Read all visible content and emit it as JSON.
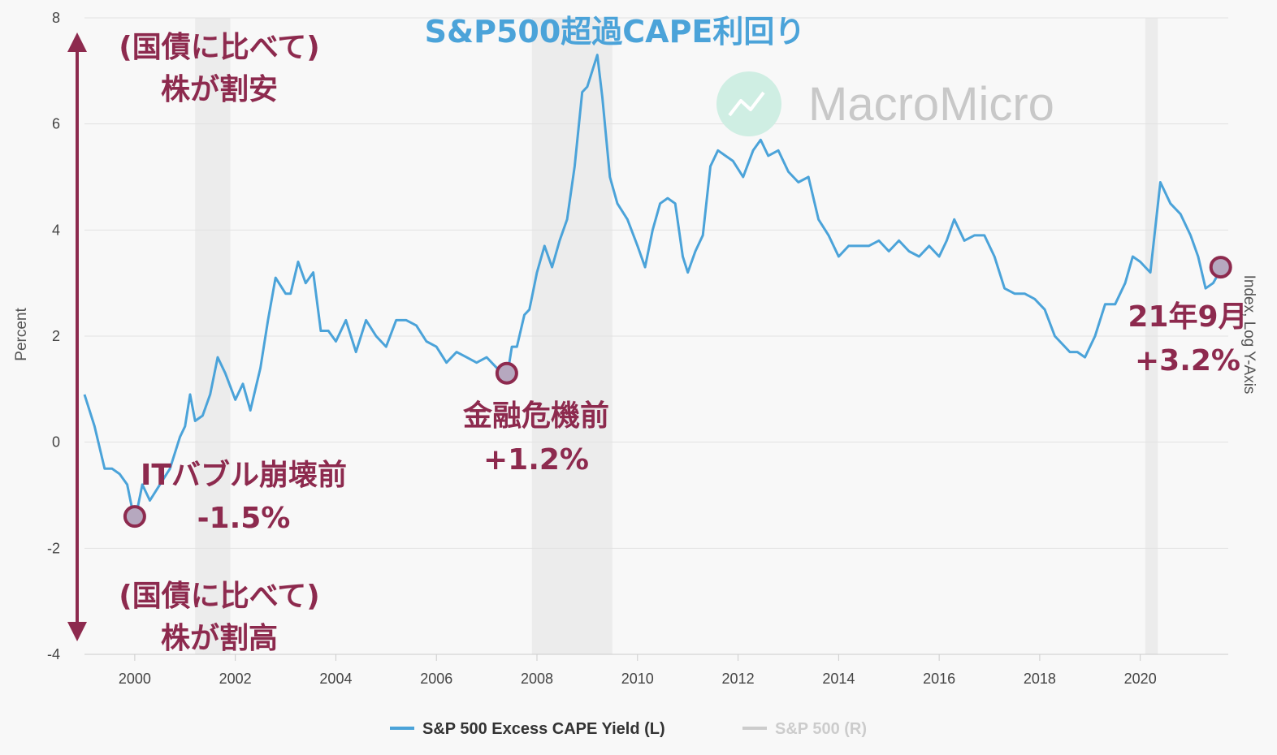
{
  "chart_data": {
    "type": "line",
    "title": "S&P500超過CAPE利回り",
    "ylabel": "Percent",
    "ylabel_right": "Index, Log Y-Axis",
    "ylim": [
      -4,
      8
    ],
    "xlim": [
      1999.0,
      2021.75
    ],
    "y_ticks": [
      8,
      6,
      4,
      2,
      0,
      -2,
      -4
    ],
    "x_ticks": [
      2000,
      2002,
      2004,
      2006,
      2008,
      2010,
      2012,
      2014,
      2016,
      2018,
      2020
    ],
    "grid": true,
    "recession_bands": [
      [
        2001.2,
        2001.9
      ],
      [
        2007.9,
        2009.5
      ],
      [
        2020.1,
        2020.35
      ]
    ],
    "series": [
      {
        "name": "S&P 500 Excess CAPE Yield (L)",
        "color": "#4ba3d9",
        "visible": true,
        "x": [
          1999.0,
          1999.2,
          1999.4,
          1999.55,
          1999.7,
          1999.85,
          2000.0,
          2000.15,
          2000.3,
          2000.5,
          2000.7,
          2000.9,
          2001.0,
          2001.1,
          2001.2,
          2001.35,
          2001.5,
          2001.65,
          2001.8,
          2002.0,
          2002.15,
          2002.3,
          2002.5,
          2002.65,
          2002.8,
          2003.0,
          2003.1,
          2003.25,
          2003.4,
          2003.55,
          2003.7,
          2003.85,
          2004.0,
          2004.2,
          2004.4,
          2004.6,
          2004.8,
          2005.0,
          2005.2,
          2005.4,
          2005.6,
          2005.8,
          2006.0,
          2006.2,
          2006.4,
          2006.6,
          2006.8,
          2007.0,
          2007.2,
          2007.4,
          2007.5,
          2007.6,
          2007.75,
          2007.85,
          2008.0,
          2008.15,
          2008.3,
          2008.45,
          2008.6,
          2008.75,
          2008.9,
          2009.0,
          2009.1,
          2009.2,
          2009.3,
          2009.45,
          2009.6,
          2009.8,
          2010.0,
          2010.15,
          2010.3,
          2010.45,
          2010.6,
          2010.75,
          2010.9,
          2011.0,
          2011.15,
          2011.3,
          2011.45,
          2011.6,
          2011.75,
          2011.9,
          2012.1,
          2012.3,
          2012.45,
          2012.6,
          2012.8,
          2013.0,
          2013.2,
          2013.4,
          2013.6,
          2013.8,
          2014.0,
          2014.2,
          2014.4,
          2014.6,
          2014.8,
          2015.0,
          2015.2,
          2015.4,
          2015.6,
          2015.8,
          2016.0,
          2016.15,
          2016.3,
          2016.5,
          2016.7,
          2016.9,
          2017.1,
          2017.3,
          2017.5,
          2017.7,
          2017.9,
          2018.1,
          2018.3,
          2018.5,
          2018.6,
          2018.75,
          2018.9,
          2019.1,
          2019.3,
          2019.5,
          2019.7,
          2019.85,
          2020.0,
          2020.1,
          2020.2,
          2020.4,
          2020.6,
          2020.8,
          2021.0,
          2021.15,
          2021.3,
          2021.45,
          2021.6
        ],
        "y": [
          0.9,
          0.3,
          -0.5,
          -0.5,
          -0.6,
          -0.8,
          -1.5,
          -0.8,
          -1.1,
          -0.8,
          -0.5,
          0.1,
          0.3,
          0.9,
          0.4,
          0.5,
          0.9,
          1.6,
          1.3,
          0.8,
          1.1,
          0.6,
          1.4,
          2.3,
          3.1,
          2.8,
          2.8,
          3.4,
          3.0,
          3.2,
          2.1,
          2.1,
          1.9,
          2.3,
          1.7,
          2.3,
          2.0,
          1.8,
          2.3,
          2.3,
          2.2,
          1.9,
          1.8,
          1.5,
          1.7,
          1.6,
          1.5,
          1.6,
          1.4,
          1.2,
          1.8,
          1.8,
          2.4,
          2.5,
          3.2,
          3.7,
          3.3,
          3.8,
          4.2,
          5.2,
          6.6,
          6.7,
          7.0,
          7.3,
          6.5,
          5.0,
          4.5,
          4.2,
          3.7,
          3.3,
          4.0,
          4.5,
          4.6,
          4.5,
          3.5,
          3.2,
          3.6,
          3.9,
          5.2,
          5.5,
          5.4,
          5.3,
          5.0,
          5.5,
          5.7,
          5.4,
          5.5,
          5.1,
          4.9,
          5.0,
          4.2,
          3.9,
          3.5,
          3.7,
          3.7,
          3.7,
          3.8,
          3.6,
          3.8,
          3.6,
          3.5,
          3.7,
          3.5,
          3.8,
          4.2,
          3.8,
          3.9,
          3.9,
          3.5,
          2.9,
          2.8,
          2.8,
          2.7,
          2.5,
          2.0,
          1.8,
          1.7,
          1.7,
          1.6,
          2.0,
          2.6,
          2.6,
          3.0,
          3.5,
          3.4,
          3.3,
          3.2,
          4.9,
          4.5,
          4.3,
          3.9,
          3.5,
          2.9,
          3.0,
          3.25
        ]
      },
      {
        "name": "S&P 500 (R)",
        "color": "#cccccc",
        "visible": false
      }
    ],
    "annotations": [
      {
        "lines": [
          "ITバブル崩壊前",
          "-1.5%"
        ],
        "x": 2000.0,
        "y": -1.4
      },
      {
        "lines": [
          "金融危機前",
          "+1.2%"
        ],
        "x": 2007.4,
        "y": 1.3
      },
      {
        "lines": [
          "21年9月",
          "+3.2%"
        ],
        "x": 2021.6,
        "y": 3.3
      }
    ],
    "arrow_labels": {
      "top": [
        "(国債に比べて)",
        "株が割安"
      ],
      "bottom": [
        "(国債に比べて)",
        "株が割高"
      ]
    }
  },
  "watermark": {
    "text": "MacroMicro",
    "icon": "chart-trend-icon",
    "icon_color": "#cfeee3"
  },
  "legend": {
    "items": [
      {
        "label": "S&P 500 Excess CAPE Yield (L)",
        "color": "#4ba3d9",
        "text_color": "#333333"
      },
      {
        "label": "S&P 500 (R)",
        "color": "#cccccc",
        "text_color": "#cccccc"
      }
    ]
  },
  "colors": {
    "accent": "#8d2a4e",
    "series": "#4ba3d9"
  }
}
